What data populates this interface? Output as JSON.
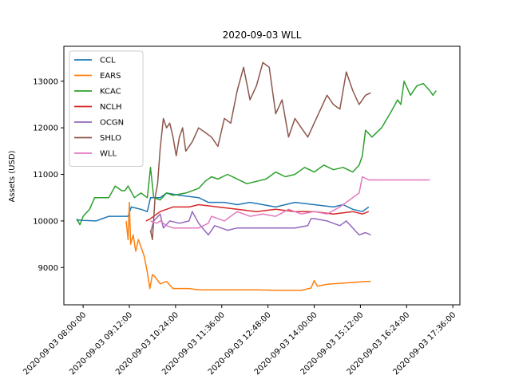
{
  "chart_data": {
    "type": "line",
    "title": "2020-09-03 WLL",
    "xlabel": "",
    "ylabel": "Assets (USD)",
    "ylim": [
      8200,
      13750
    ],
    "xlim": [
      "2020-09-03 07:30:00",
      "2020-09-03 17:47:00"
    ],
    "grid": false,
    "legend_position": "top-left",
    "yticks": [
      9000,
      10000,
      11000,
      12000,
      13000
    ],
    "xticks": [
      "2020-09-03 08:00:00",
      "2020-09-03 09:12:00",
      "2020-09-03 10:24:00",
      "2020-09-03 11:36:00",
      "2020-09-03 12:48:00",
      "2020-09-03 14:00:00",
      "2020-09-03 15:12:00",
      "2020-09-03 16:24:00",
      "2020-09-03 17:36:00"
    ],
    "series": [
      {
        "name": "CCL",
        "color": "#1f77b4",
        "points": [
          [
            "07:50",
            10000
          ],
          [
            "07:52",
            10020
          ],
          [
            "08:00",
            10010
          ],
          [
            "08:20",
            10000
          ],
          [
            "08:30",
            10050
          ],
          [
            "08:40",
            10100
          ],
          [
            "09:00",
            10100
          ],
          [
            "09:10",
            10100
          ],
          [
            "09:15",
            10300
          ],
          [
            "09:30",
            10250
          ],
          [
            "09:40",
            10200
          ],
          [
            "09:45",
            10500
          ],
          [
            "10:00",
            10500
          ],
          [
            "10:10",
            10600
          ],
          [
            "10:30",
            10550
          ],
          [
            "11:00",
            10500
          ],
          [
            "11:15",
            10400
          ],
          [
            "11:40",
            10400
          ],
          [
            "12:00",
            10350
          ],
          [
            "12:20",
            10400
          ],
          [
            "12:40",
            10350
          ],
          [
            "13:00",
            10300
          ],
          [
            "13:30",
            10400
          ],
          [
            "14:00",
            10350
          ],
          [
            "14:30",
            10300
          ],
          [
            "14:45",
            10350
          ],
          [
            "15:00",
            10250
          ],
          [
            "15:15",
            10200
          ],
          [
            "15:25",
            10300
          ]
        ]
      },
      {
        "name": "EARS",
        "color": "#ff7f0e",
        "points": [
          [
            "09:07",
            10000
          ],
          [
            "09:10",
            9600
          ],
          [
            "09:12",
            10400
          ],
          [
            "09:14",
            9500
          ],
          [
            "09:18",
            9700
          ],
          [
            "09:22",
            9350
          ],
          [
            "09:26",
            9600
          ],
          [
            "09:30",
            9450
          ],
          [
            "09:35",
            9250
          ],
          [
            "09:40",
            8900
          ],
          [
            "09:44",
            8550
          ],
          [
            "09:48",
            8850
          ],
          [
            "09:52",
            8800
          ],
          [
            "10:00",
            8650
          ],
          [
            "10:10",
            8700
          ],
          [
            "10:20",
            8550
          ],
          [
            "10:45",
            8550
          ],
          [
            "11:00",
            8520
          ],
          [
            "11:30",
            8520
          ],
          [
            "12:00",
            8520
          ],
          [
            "12:30",
            8520
          ],
          [
            "13:00",
            8510
          ],
          [
            "13:40",
            8510
          ],
          [
            "13:55",
            8560
          ],
          [
            "14:00",
            8720
          ],
          [
            "14:05",
            8600
          ],
          [
            "14:20",
            8640
          ],
          [
            "14:40",
            8660
          ],
          [
            "15:00",
            8680
          ],
          [
            "15:20",
            8700
          ],
          [
            "15:28",
            8700
          ]
        ]
      },
      {
        "name": "KCAC",
        "color": "#2ca02c",
        "points": [
          [
            "07:50",
            10050
          ],
          [
            "07:55",
            9920
          ],
          [
            "08:00",
            10100
          ],
          [
            "08:10",
            10250
          ],
          [
            "08:18",
            10500
          ],
          [
            "08:40",
            10500
          ],
          [
            "08:50",
            10750
          ],
          [
            "09:00",
            10650
          ],
          [
            "09:05",
            10650
          ],
          [
            "09:10",
            10750
          ],
          [
            "09:20",
            10500
          ],
          [
            "09:30",
            10600
          ],
          [
            "09:40",
            10500
          ],
          [
            "09:45",
            11150
          ],
          [
            "09:50",
            10500
          ],
          [
            "10:00",
            10450
          ],
          [
            "10:10",
            10600
          ],
          [
            "10:20",
            10550
          ],
          [
            "10:40",
            10600
          ],
          [
            "11:00",
            10700
          ],
          [
            "11:10",
            10850
          ],
          [
            "11:20",
            10950
          ],
          [
            "11:30",
            10900
          ],
          [
            "11:45",
            11000
          ],
          [
            "12:00",
            10900
          ],
          [
            "12:15",
            10800
          ],
          [
            "12:30",
            10850
          ],
          [
            "12:45",
            10900
          ],
          [
            "13:00",
            11050
          ],
          [
            "13:15",
            10950
          ],
          [
            "13:30",
            11000
          ],
          [
            "13:45",
            11150
          ],
          [
            "14:00",
            11050
          ],
          [
            "14:15",
            11200
          ],
          [
            "14:30",
            11100
          ],
          [
            "14:45",
            11150
          ],
          [
            "15:00",
            11050
          ],
          [
            "15:10",
            11200
          ],
          [
            "15:15",
            11400
          ],
          [
            "15:20",
            11950
          ],
          [
            "15:30",
            11800
          ],
          [
            "15:45",
            12000
          ],
          [
            "16:00",
            12350
          ],
          [
            "16:10",
            12600
          ],
          [
            "16:15",
            12500
          ],
          [
            "16:20",
            13000
          ],
          [
            "16:30",
            12700
          ],
          [
            "16:40",
            12900
          ],
          [
            "16:50",
            12950
          ],
          [
            "17:00",
            12800
          ],
          [
            "17:05",
            12700
          ],
          [
            "17:10",
            12800
          ]
        ]
      },
      {
        "name": "NCLH",
        "color": "#d62728",
        "points": [
          [
            "09:38",
            10000
          ],
          [
            "09:45",
            10050
          ],
          [
            "10:00",
            10200
          ],
          [
            "10:20",
            10300
          ],
          [
            "10:45",
            10300
          ],
          [
            "11:00",
            10350
          ],
          [
            "11:30",
            10300
          ],
          [
            "12:00",
            10250
          ],
          [
            "12:30",
            10200
          ],
          [
            "13:00",
            10250
          ],
          [
            "13:30",
            10200
          ],
          [
            "14:00",
            10200
          ],
          [
            "14:30",
            10150
          ],
          [
            "15:00",
            10200
          ],
          [
            "15:15",
            10150
          ],
          [
            "15:25",
            10200
          ]
        ]
      },
      {
        "name": "OCGN",
        "color": "#9467bd",
        "points": [
          [
            "09:45",
            9750
          ],
          [
            "09:50",
            10000
          ],
          [
            "10:00",
            10150
          ],
          [
            "10:05",
            9850
          ],
          [
            "10:15",
            10000
          ],
          [
            "10:30",
            9950
          ],
          [
            "10:45",
            10000
          ],
          [
            "10:50",
            10200
          ],
          [
            "11:00",
            9950
          ],
          [
            "11:15",
            9700
          ],
          [
            "11:25",
            9900
          ],
          [
            "11:45",
            9800
          ],
          [
            "12:00",
            9850
          ],
          [
            "12:30",
            9850
          ],
          [
            "13:00",
            9850
          ],
          [
            "13:30",
            9850
          ],
          [
            "13:50",
            9900
          ],
          [
            "13:55",
            10050
          ],
          [
            "14:00",
            10050
          ],
          [
            "14:20",
            10000
          ],
          [
            "14:40",
            9900
          ],
          [
            "14:50",
            10000
          ],
          [
            "15:00",
            9850
          ],
          [
            "15:10",
            9700
          ],
          [
            "15:20",
            9750
          ],
          [
            "15:28",
            9700
          ]
        ]
      },
      {
        "name": "SHLO",
        "color": "#8c564b",
        "points": [
          [
            "09:45",
            9800
          ],
          [
            "09:48",
            9600
          ],
          [
            "09:52",
            10500
          ],
          [
            "09:56",
            10800
          ],
          [
            "10:00",
            11550
          ],
          [
            "10:05",
            12200
          ],
          [
            "10:10",
            12000
          ],
          [
            "10:15",
            12100
          ],
          [
            "10:20",
            11800
          ],
          [
            "10:25",
            11400
          ],
          [
            "10:30",
            11800
          ],
          [
            "10:35",
            12000
          ],
          [
            "10:40",
            11500
          ],
          [
            "10:50",
            11700
          ],
          [
            "11:00",
            12000
          ],
          [
            "11:10",
            11900
          ],
          [
            "11:20",
            11800
          ],
          [
            "11:30",
            11600
          ],
          [
            "11:40",
            12200
          ],
          [
            "11:50",
            12100
          ],
          [
            "12:00",
            12800
          ],
          [
            "12:10",
            13300
          ],
          [
            "12:20",
            12600
          ],
          [
            "12:30",
            12900
          ],
          [
            "12:40",
            13400
          ],
          [
            "12:50",
            13300
          ],
          [
            "13:00",
            12300
          ],
          [
            "13:10",
            12600
          ],
          [
            "13:20",
            11800
          ],
          [
            "13:30",
            12200
          ],
          [
            "13:40",
            12000
          ],
          [
            "13:50",
            11800
          ],
          [
            "14:00",
            12100
          ],
          [
            "14:10",
            12400
          ],
          [
            "14:20",
            12700
          ],
          [
            "14:30",
            12500
          ],
          [
            "14:40",
            12400
          ],
          [
            "14:50",
            13200
          ],
          [
            "15:00",
            12800
          ],
          [
            "15:10",
            12500
          ],
          [
            "15:20",
            12700
          ],
          [
            "15:28",
            12750
          ]
        ]
      },
      {
        "name": "WLL",
        "color": "#e377c2",
        "points": [
          [
            "09:45",
            10000
          ],
          [
            "09:55",
            9950
          ],
          [
            "10:00",
            10000
          ],
          [
            "10:10",
            9900
          ],
          [
            "10:20",
            9850
          ],
          [
            "10:40",
            9850
          ],
          [
            "11:00",
            9850
          ],
          [
            "11:15",
            9950
          ],
          [
            "11:20",
            10100
          ],
          [
            "11:40",
            10000
          ],
          [
            "12:00",
            10200
          ],
          [
            "12:20",
            10100
          ],
          [
            "12:40",
            10150
          ],
          [
            "13:00",
            10100
          ],
          [
            "13:20",
            10250
          ],
          [
            "13:40",
            10150
          ],
          [
            "14:00",
            10200
          ],
          [
            "14:20",
            10150
          ],
          [
            "14:40",
            10300
          ],
          [
            "15:00",
            10500
          ],
          [
            "15:10",
            10600
          ],
          [
            "15:15",
            10950
          ],
          [
            "15:25",
            10880
          ],
          [
            "16:00",
            10880
          ],
          [
            "16:30",
            10880
          ],
          [
            "17:00",
            10880
          ]
        ]
      }
    ]
  }
}
